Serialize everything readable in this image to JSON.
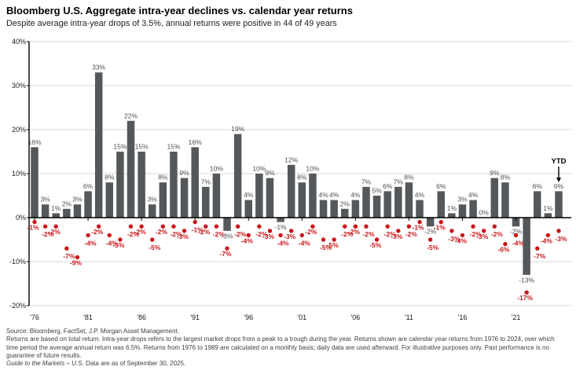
{
  "header": {
    "title": "Bloomberg U.S. Aggregate intra-year declines vs. calendar year returns",
    "subtitle": "Despite average intra-year drops of 3.5%, annual returns were positive in 44 of 49 years"
  },
  "chart_data": {
    "type": "bar",
    "title": "Bloomberg U.S. Aggregate intra-year declines vs. calendar year returns",
    "subtitle": "Despite average intra-year drops of 3.5%, annual returns were positive in 44 of 49 years",
    "ylim": [
      -20,
      40
    ],
    "grid": "horizontal",
    "y_ticks": [
      40,
      30,
      20,
      10,
      0,
      -10,
      -20
    ],
    "y_tick_labels": [
      "40%",
      "30%",
      "20%",
      "10%",
      "0%",
      "-10%",
      "-20%"
    ],
    "x_tick_labels": [
      "'76",
      "'81",
      "'86",
      "'91",
      "'96",
      "'01",
      "'06",
      "'11",
      "'16",
      "'21"
    ],
    "years": [
      1976,
      1977,
      1978,
      1979,
      1980,
      1981,
      1982,
      1983,
      1984,
      1985,
      1986,
      1987,
      1988,
      1989,
      1990,
      1991,
      1992,
      1993,
      1994,
      1995,
      1996,
      1997,
      1998,
      1999,
      2000,
      2001,
      2002,
      2003,
      2004,
      2005,
      2006,
      2007,
      2008,
      2009,
      2010,
      2011,
      2012,
      2013,
      2014,
      2015,
      2016,
      2017,
      2018,
      2019,
      2020,
      2021,
      2022,
      2023,
      2024,
      2025
    ],
    "series": [
      {
        "name": "Calendar year return",
        "type": "bar",
        "color": "#54585a",
        "label_color": "#4d4f51",
        "values": [
          16,
          3,
          1,
          2,
          3,
          6,
          33,
          8,
          15,
          22,
          15,
          3,
          8,
          15,
          9,
          16,
          7,
          10,
          -3,
          19,
          4,
          10,
          9,
          -1,
          12,
          8,
          10,
          4,
          4,
          2,
          4,
          7,
          5,
          6,
          7,
          8,
          4,
          -2,
          6,
          1,
          3,
          4,
          0,
          9,
          8,
          -2,
          -13,
          6,
          1,
          6
        ]
      },
      {
        "name": "Intra-year decline",
        "type": "scatter",
        "color": "#c8161a",
        "label_color": "#c8161a",
        "values": [
          -1,
          -2,
          -2,
          -7,
          -9,
          -4,
          -2,
          -4,
          -5,
          -2,
          -2,
          -5,
          -2,
          -2,
          -3,
          -1,
          -2,
          -2,
          -7,
          -2,
          -4,
          -2,
          -3,
          -4,
          -3,
          -4,
          -2,
          -5,
          -5,
          -2,
          -2,
          -2,
          -5,
          -2,
          -3,
          -2,
          -1,
          -5,
          -1,
          -3,
          -4,
          -2,
          -3,
          -2,
          -6,
          -4,
          -17,
          -7,
          -4,
          -3
        ]
      }
    ],
    "annotations": {
      "ytd_label": "YTD",
      "ytd_year": 2025
    }
  },
  "footer": {
    "source": "Source: Bloomberg, FactSet, J.P. Morgan Asset Management.",
    "disclaimer": "Returns are based on total return. Intra-year drops refers to the largest market drops from a peak to a trough during the year. Returns shown are calendar year returns from 1976 to 2024, over which time period the average annual return was 6.5%. Returns from 1976 to 1989 are calculated on a monthly basis; daily data are used afterward. For illustrative purposes only. Past performance is no guarantee of future results.",
    "gtm_italic": "Guide to the Markets – U.S.",
    "gtm_rest": " Data are as of September 30, 2025."
  }
}
